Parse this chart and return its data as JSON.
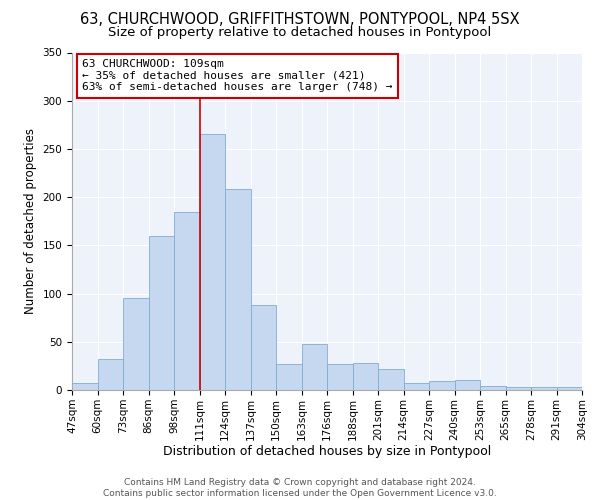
{
  "title1": "63, CHURCHWOOD, GRIFFITHSTOWN, PONTYPOOL, NP4 5SX",
  "title2": "Size of property relative to detached houses in Pontypool",
  "xlabel": "Distribution of detached houses by size in Pontypool",
  "ylabel": "Number of detached properties",
  "categories": [
    "47sqm",
    "60sqm",
    "73sqm",
    "86sqm",
    "98sqm",
    "111sqm",
    "124sqm",
    "137sqm",
    "150sqm",
    "163sqm",
    "176sqm",
    "188sqm",
    "201sqm",
    "214sqm",
    "227sqm",
    "240sqm",
    "253sqm",
    "265sqm",
    "278sqm",
    "291sqm",
    "304sqm"
  ],
  "values": [
    7,
    32,
    95,
    160,
    185,
    265,
    208,
    88,
    27,
    48,
    27,
    28,
    22,
    7,
    9,
    10,
    4,
    3,
    3,
    3
  ],
  "bar_color": "#c5d8f0",
  "bar_edge_color": "#7eadd4",
  "vline_color": "#cc0000",
  "vline_x": 5,
  "annotation_line1": "63 CHURCHWOOD: 109sqm",
  "annotation_line2": "← 35% of detached houses are smaller (421)",
  "annotation_line3": "63% of semi-detached houses are larger (748) →",
  "ylim": [
    0,
    350
  ],
  "yticks": [
    0,
    50,
    100,
    150,
    200,
    250,
    300,
    350
  ],
  "bg_color": "#eef2fb",
  "grid_color": "#ffffff",
  "footer1": "Contains HM Land Registry data © Crown copyright and database right 2024.",
  "footer2": "Contains public sector information licensed under the Open Government Licence v3.0.",
  "title1_fontsize": 10.5,
  "title2_fontsize": 9.5,
  "xlabel_fontsize": 9,
  "ylabel_fontsize": 8.5,
  "tick_fontsize": 7.5,
  "annotation_fontsize": 8,
  "footer_fontsize": 6.5
}
